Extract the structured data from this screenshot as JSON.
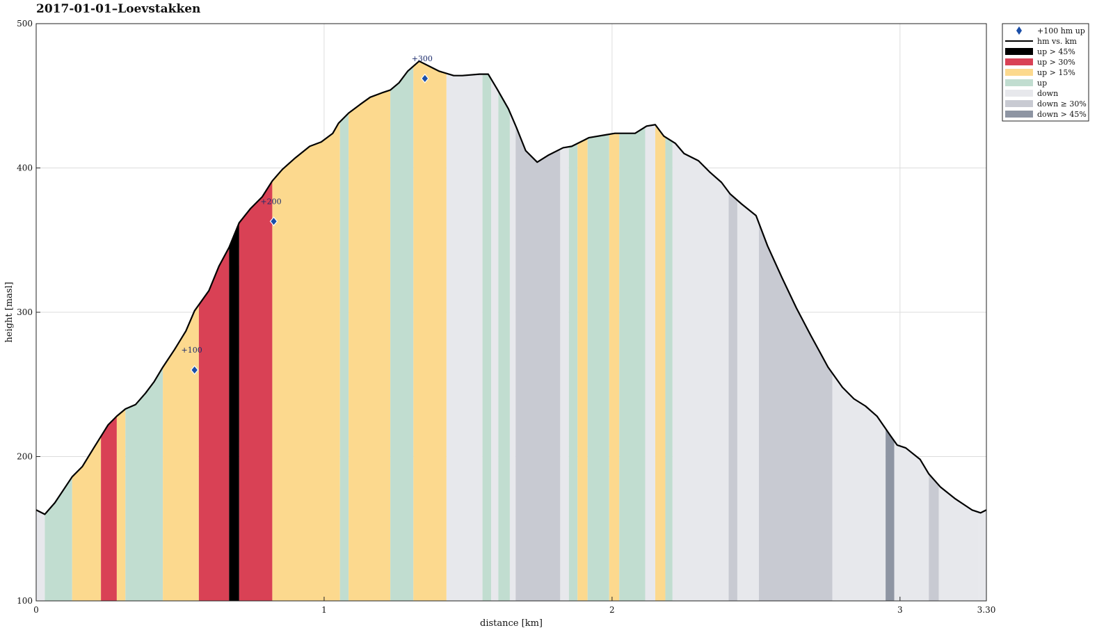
{
  "chart_data": {
    "type": "area",
    "title": "2017-01-01–Loevstakken",
    "xlabel": "distance [km]",
    "ylabel": "height [masl]",
    "xlim": [
      0,
      3.3
    ],
    "ylim": [
      100,
      500
    ],
    "xticks": [
      0,
      1,
      2,
      3,
      3.3
    ],
    "xtick_labels": [
      "0",
      "1",
      "2",
      "3",
      "3.30"
    ],
    "yticks": [
      100,
      200,
      300,
      400,
      500
    ],
    "ytick_labels": [
      "100",
      "200",
      "300",
      "400",
      "500"
    ],
    "grid": true,
    "legend_position": "outside-top-right",
    "categories": {
      "up45": {
        "label": "up > 45%",
        "color": "#000000"
      },
      "up30": {
        "label": "up > 30%",
        "color": "#d94155"
      },
      "up15": {
        "label": "up > 15%",
        "color": "#fcd98e"
      },
      "up": {
        "label": "up",
        "color": "#c1ddd0"
      },
      "down": {
        "label": "down",
        "color": "#e7e8ec"
      },
      "down30": {
        "label": "down ≥ 30%",
        "color": "#c8cad2"
      },
      "down45": {
        "label": "down > 45%",
        "color": "#8e95a3"
      }
    },
    "legend": [
      {
        "label": "+100 hm up",
        "kind": "marker",
        "color": "#1a4ea8"
      },
      {
        "label": "hm vs. km",
        "kind": "line",
        "color": "#000000"
      },
      {
        "label": "up > 45%",
        "kind": "patch",
        "color": "#000000"
      },
      {
        "label": "up > 30%",
        "kind": "patch",
        "color": "#d94155"
      },
      {
        "label": "up > 15%",
        "kind": "patch",
        "color": "#fcd98e"
      },
      {
        "label": "up",
        "kind": "patch",
        "color": "#c1ddd0"
      },
      {
        "label": "down",
        "kind": "patch",
        "color": "#e7e8ec"
      },
      {
        "label": "down ≥ 30%",
        "kind": "patch",
        "color": "#c8cad2"
      },
      {
        "label": "down > 45%",
        "kind": "patch",
        "color": "#8e95a3"
      }
    ],
    "profile": {
      "x": [
        0,
        0.03,
        0.065,
        0.125,
        0.16,
        0.2,
        0.225,
        0.25,
        0.28,
        0.31,
        0.345,
        0.38,
        0.41,
        0.44,
        0.48,
        0.52,
        0.55,
        0.6,
        0.635,
        0.67,
        0.705,
        0.745,
        0.785,
        0.82,
        0.855,
        0.9,
        0.95,
        0.99,
        1.03,
        1.05,
        1.085,
        1.125,
        1.16,
        1.2,
        1.23,
        1.26,
        1.29,
        1.33,
        1.37,
        1.4,
        1.45,
        1.48,
        1.54,
        1.57,
        1.6,
        1.64,
        1.67,
        1.7,
        1.74,
        1.78,
        1.83,
        1.86,
        1.9,
        1.92,
        1.98,
        2.01,
        2.03,
        2.08,
        2.12,
        2.15,
        2.18,
        2.22,
        2.25,
        2.3,
        2.34,
        2.38,
        2.41,
        2.45,
        2.5,
        2.54,
        2.59,
        2.64,
        2.69,
        2.72,
        2.75,
        2.8,
        2.84,
        2.88,
        2.92,
        2.965,
        2.99,
        3.02,
        3.07,
        3.1,
        3.14,
        3.19,
        3.25,
        3.28,
        3.3
      ],
      "y": [
        163,
        160,
        168,
        186,
        193,
        206,
        214,
        222,
        228,
        233,
        236,
        244,
        252,
        262,
        274,
        287,
        301,
        315,
        332,
        345,
        362,
        372,
        380,
        391,
        399,
        407,
        415,
        418,
        424,
        431,
        438,
        444,
        449,
        452,
        454,
        459,
        467,
        474,
        470,
        467,
        464,
        464,
        465,
        465,
        455,
        441,
        427,
        412,
        404,
        409,
        414,
        415,
        419,
        421,
        423,
        424,
        424,
        424,
        429,
        430,
        422,
        417,
        410,
        405,
        397,
        390,
        382,
        375,
        367,
        346,
        324,
        303,
        284,
        273,
        262,
        248,
        240,
        235,
        228,
        215,
        208,
        206,
        198,
        188,
        179,
        171,
        163,
        161,
        163
      ]
    },
    "segments": [
      [
        0.0,
        0.03,
        "down"
      ],
      [
        0.03,
        0.125,
        "up"
      ],
      [
        0.125,
        0.225,
        "up15"
      ],
      [
        0.225,
        0.28,
        "up30"
      ],
      [
        0.28,
        0.31,
        "up15"
      ],
      [
        0.31,
        0.44,
        "up"
      ],
      [
        0.44,
        0.565,
        "up15"
      ],
      [
        0.565,
        0.67,
        "up30"
      ],
      [
        0.67,
        0.705,
        "up45"
      ],
      [
        0.705,
        0.82,
        "up30"
      ],
      [
        0.82,
        1.055,
        "up15"
      ],
      [
        1.055,
        1.085,
        "up"
      ],
      [
        1.085,
        1.23,
        "up15"
      ],
      [
        1.23,
        1.31,
        "up"
      ],
      [
        1.31,
        1.425,
        "up15"
      ],
      [
        1.425,
        1.55,
        "down"
      ],
      [
        1.55,
        1.58,
        "up"
      ],
      [
        1.58,
        1.605,
        "down"
      ],
      [
        1.605,
        1.645,
        "up"
      ],
      [
        1.645,
        1.665,
        "down"
      ],
      [
        1.665,
        1.82,
        "down30"
      ],
      [
        1.82,
        1.85,
        "down"
      ],
      [
        1.85,
        1.88,
        "up"
      ],
      [
        1.88,
        1.915,
        "up15"
      ],
      [
        1.915,
        1.99,
        "up"
      ],
      [
        1.99,
        2.025,
        "up15"
      ],
      [
        2.025,
        2.115,
        "up"
      ],
      [
        2.115,
        2.15,
        "down"
      ],
      [
        2.15,
        2.185,
        "up15"
      ],
      [
        2.185,
        2.21,
        "up"
      ],
      [
        2.21,
        2.405,
        "down"
      ],
      [
        2.405,
        2.435,
        "down30"
      ],
      [
        2.435,
        2.51,
        "down"
      ],
      [
        2.51,
        2.765,
        "down30"
      ],
      [
        2.765,
        2.95,
        "down"
      ],
      [
        2.95,
        2.98,
        "down45"
      ],
      [
        2.98,
        3.1,
        "down"
      ],
      [
        3.1,
        3.135,
        "down30"
      ],
      [
        3.135,
        3.275,
        "down"
      ],
      [
        3.275,
        3.3,
        "down"
      ]
    ],
    "markers": [
      {
        "x": 0.55,
        "y": 260,
        "label": "+100"
      },
      {
        "x": 0.825,
        "y": 363,
        "label": "+200"
      },
      {
        "x": 1.35,
        "y": 462,
        "label": "+300"
      }
    ]
  }
}
